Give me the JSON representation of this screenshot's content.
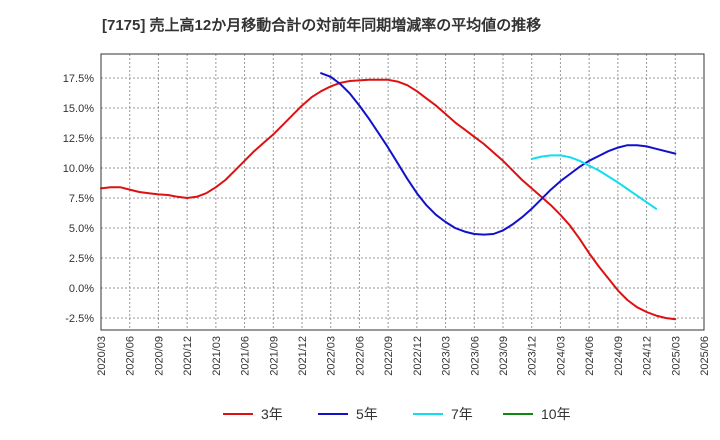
{
  "chart_data": {
    "type": "line",
    "title": "[7175]  売上高12か月移動合計の対前年同期増減率の平均値の推移",
    "xlabel": "",
    "ylabel": "",
    "x_ticks": [
      "2020/03",
      "2020/06",
      "2020/09",
      "2020/12",
      "2021/03",
      "2021/06",
      "2021/09",
      "2021/12",
      "2022/03",
      "2022/06",
      "2022/09",
      "2022/12",
      "2023/03",
      "2023/06",
      "2023/09",
      "2023/12",
      "2024/03",
      "2024/06",
      "2024/09",
      "2024/12",
      "2025/03",
      "2025/06"
    ],
    "y_ticks": [
      "17.5%",
      "15.0%",
      "12.5%",
      "10.0%",
      "7.5%",
      "5.0%",
      "2.5%",
      "0.0%",
      "-2.5%"
    ],
    "ylim": [
      -3.5,
      19.5
    ],
    "grid": true,
    "legend_position": "bottom",
    "series": [
      {
        "name": "3年",
        "color": "#dd1111",
        "points": [
          [
            "2020/03",
            8.3
          ],
          [
            "2020/04",
            8.4
          ],
          [
            "2020/05",
            8.4
          ],
          [
            "2020/06",
            8.2
          ],
          [
            "2020/07",
            8.0
          ],
          [
            "2020/08",
            7.9
          ],
          [
            "2020/09",
            7.8
          ],
          [
            "2020/10",
            7.75
          ],
          [
            "2020/11",
            7.6
          ],
          [
            "2020/12",
            7.5
          ],
          [
            "2021/01",
            7.6
          ],
          [
            "2021/02",
            7.9
          ],
          [
            "2021/03",
            8.4
          ],
          [
            "2021/04",
            9.0
          ],
          [
            "2021/05",
            9.8
          ],
          [
            "2021/06",
            10.6
          ],
          [
            "2021/07",
            11.4
          ],
          [
            "2021/08",
            12.1
          ],
          [
            "2021/09",
            12.8
          ],
          [
            "2021/10",
            13.6
          ],
          [
            "2021/11",
            14.4
          ],
          [
            "2021/12",
            15.2
          ],
          [
            "2022/01",
            15.9
          ],
          [
            "2022/02",
            16.4
          ],
          [
            "2022/03",
            16.8
          ],
          [
            "2022/04",
            17.1
          ],
          [
            "2022/05",
            17.25
          ],
          [
            "2022/06",
            17.3
          ],
          [
            "2022/07",
            17.35
          ],
          [
            "2022/08",
            17.35
          ],
          [
            "2022/09",
            17.35
          ],
          [
            "2022/10",
            17.2
          ],
          [
            "2022/11",
            16.9
          ],
          [
            "2022/12",
            16.4
          ],
          [
            "2023/01",
            15.8
          ],
          [
            "2023/02",
            15.2
          ],
          [
            "2023/03",
            14.5
          ],
          [
            "2023/04",
            13.8
          ],
          [
            "2023/05",
            13.2
          ],
          [
            "2023/06",
            12.6
          ],
          [
            "2023/07",
            12.0
          ],
          [
            "2023/08",
            11.3
          ],
          [
            "2023/09",
            10.6
          ],
          [
            "2023/10",
            9.8
          ],
          [
            "2023/11",
            9.0
          ],
          [
            "2023/12",
            8.3
          ],
          [
            "2024/01",
            7.6
          ],
          [
            "2024/02",
            6.9
          ],
          [
            "2024/03",
            6.1
          ],
          [
            "2024/04",
            5.2
          ],
          [
            "2024/05",
            4.1
          ],
          [
            "2024/06",
            2.9
          ],
          [
            "2024/07",
            1.8
          ],
          [
            "2024/08",
            0.8
          ],
          [
            "2024/09",
            -0.2
          ],
          [
            "2024/10",
            -1.0
          ],
          [
            "2024/11",
            -1.6
          ],
          [
            "2024/12",
            -2.0
          ],
          [
            "2025/01",
            -2.3
          ],
          [
            "2025/02",
            -2.5
          ],
          [
            "2025/03",
            -2.6
          ]
        ]
      },
      {
        "name": "5年",
        "color": "#1111cc",
        "points": [
          [
            "2022/02",
            17.9
          ],
          [
            "2022/03",
            17.6
          ],
          [
            "2022/04",
            17.0
          ],
          [
            "2022/05",
            16.2
          ],
          [
            "2022/06",
            15.2
          ],
          [
            "2022/07",
            14.1
          ],
          [
            "2022/08",
            12.9
          ],
          [
            "2022/09",
            11.7
          ],
          [
            "2022/10",
            10.4
          ],
          [
            "2022/11",
            9.1
          ],
          [
            "2022/12",
            7.9
          ],
          [
            "2023/01",
            6.9
          ],
          [
            "2023/02",
            6.1
          ],
          [
            "2023/03",
            5.5
          ],
          [
            "2023/04",
            5.0
          ],
          [
            "2023/05",
            4.7
          ],
          [
            "2023/06",
            4.5
          ],
          [
            "2023/07",
            4.45
          ],
          [
            "2023/08",
            4.5
          ],
          [
            "2023/09",
            4.8
          ],
          [
            "2023/10",
            5.3
          ],
          [
            "2023/11",
            5.9
          ],
          [
            "2023/12",
            6.6
          ],
          [
            "2024/01",
            7.4
          ],
          [
            "2024/02",
            8.2
          ],
          [
            "2024/03",
            8.9
          ],
          [
            "2024/04",
            9.5
          ],
          [
            "2024/05",
            10.1
          ],
          [
            "2024/06",
            10.6
          ],
          [
            "2024/07",
            11.0
          ],
          [
            "2024/08",
            11.4
          ],
          [
            "2024/09",
            11.7
          ],
          [
            "2024/10",
            11.9
          ],
          [
            "2024/11",
            11.9
          ],
          [
            "2024/12",
            11.8
          ],
          [
            "2025/01",
            11.6
          ],
          [
            "2025/03",
            11.2
          ]
        ]
      },
      {
        "name": "7年",
        "color": "#11ddee",
        "points": [
          [
            "2023/12",
            10.75
          ],
          [
            "2024/01",
            10.95
          ],
          [
            "2024/02",
            11.05
          ],
          [
            "2024/03",
            11.05
          ],
          [
            "2024/04",
            10.9
          ],
          [
            "2024/05",
            10.6
          ],
          [
            "2024/06",
            10.2
          ],
          [
            "2024/07",
            9.8
          ],
          [
            "2024/08",
            9.3
          ],
          [
            "2024/09",
            8.8
          ],
          [
            "2024/10",
            8.25
          ],
          [
            "2024/11",
            7.7
          ],
          [
            "2024/12",
            7.15
          ],
          [
            "2025/01",
            6.6
          ]
        ]
      },
      {
        "name": "10年",
        "color": "#118811",
        "points": []
      }
    ]
  }
}
